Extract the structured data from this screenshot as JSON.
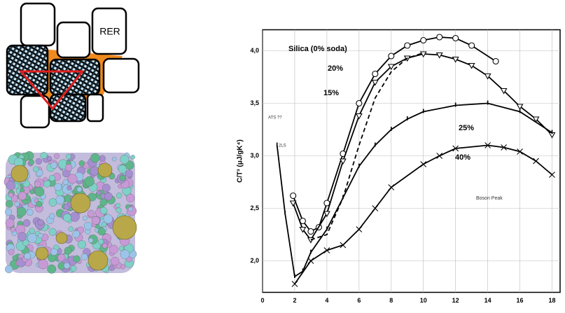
{
  "diagram": {
    "label": "RER"
  },
  "chart_data": {
    "type": "line",
    "y_label": "C/T³ (μJ/gK⁴)",
    "annotations": [
      "ATS ??",
      "2LS",
      "Boson Peak"
    ],
    "xlim": [
      0,
      18.5
    ],
    "xticks": [
      0,
      2,
      4,
      6,
      8,
      10,
      12,
      14,
      16,
      18
    ],
    "ylim": [
      1.7,
      4.2
    ],
    "yticks": [
      {
        "value": 2.0,
        "label": "2,0"
      },
      {
        "value": 2.5,
        "label": "2,5"
      },
      {
        "value": 3.0,
        "label": "3,0"
      },
      {
        "value": 3.5,
        "label": "3,5"
      },
      {
        "value": 4.0,
        "label": "4,0"
      }
    ],
    "grid": true,
    "series": [
      {
        "name": "Silica (0% soda)",
        "color": "#000000",
        "marker": "circle",
        "dashed": false,
        "x": [
          1.9,
          2.5,
          3,
          3.5,
          4,
          5,
          6,
          7,
          8,
          9,
          10,
          11,
          12,
          13,
          14.5
        ],
        "values": [
          2.62,
          2.38,
          2.28,
          2.32,
          2.55,
          3.02,
          3.5,
          3.78,
          3.95,
          4.05,
          4.1,
          4.13,
          4.12,
          4.05,
          3.9
        ]
      },
      {
        "name": "20%",
        "color": "#000000",
        "marker": "triangle",
        "dashed": false,
        "x": [
          1.9,
          2.5,
          3,
          4,
          5,
          6,
          7,
          8,
          9,
          10,
          11,
          12,
          13,
          14,
          15,
          16,
          17,
          18
        ],
        "values": [
          2.55,
          2.3,
          2.2,
          2.45,
          2.95,
          3.38,
          3.7,
          3.85,
          3.93,
          3.97,
          3.96,
          3.92,
          3.86,
          3.76,
          3.62,
          3.47,
          3.35,
          3.2
        ]
      },
      {
        "name": "15%",
        "color": "#000000",
        "marker": "none",
        "dashed": true,
        "x": [
          3,
          4,
          5,
          6,
          7,
          8,
          9,
          10
        ],
        "values": [
          2.2,
          2.25,
          2.6,
          3.1,
          3.55,
          3.8,
          3.93,
          3.98
        ]
      },
      {
        "name": "25%",
        "color": "#000000",
        "marker": "tick",
        "dashed": false,
        "x": [
          0.9,
          1.4,
          2,
          2.5,
          3,
          4,
          5,
          6,
          7,
          8,
          9,
          10,
          12,
          14,
          16,
          18
        ],
        "values": [
          3.1,
          2.45,
          1.85,
          1.9,
          2.08,
          2.3,
          2.6,
          2.9,
          3.1,
          3.25,
          3.35,
          3.42,
          3.48,
          3.5,
          3.42,
          3.22
        ]
      },
      {
        "name": "40%",
        "color": "#000000",
        "marker": "x",
        "dashed": false,
        "x": [
          2,
          3,
          4,
          5,
          6,
          7,
          8,
          10,
          11,
          12,
          14,
          15,
          16,
          17,
          18
        ],
        "values": [
          1.78,
          2.0,
          2.1,
          2.15,
          2.3,
          2.5,
          2.7,
          2.92,
          3.0,
          3.07,
          3.1,
          3.08,
          3.04,
          2.95,
          2.82
        ]
      }
    ]
  }
}
